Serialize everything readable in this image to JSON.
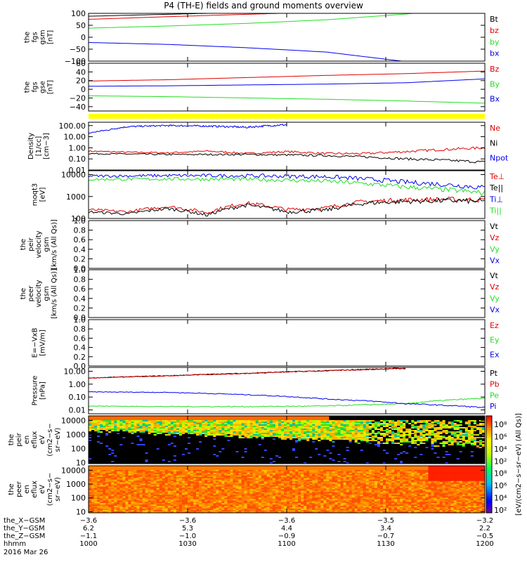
{
  "title": "P4 (TH-E) fields and ground moments overview",
  "colors": {
    "black": "#000000",
    "red": "#e00000",
    "green": "#22dd22",
    "blue": "#0000ee",
    "yellow": "#ffff00"
  },
  "chart_data": [
    {
      "id": "fgs_gsm",
      "type": "line",
      "ylabel": [
        "the",
        "fgs",
        "gsm",
        "[nT]"
      ],
      "ylim": [
        -100,
        100
      ],
      "yticks": [
        "100",
        "50",
        "0",
        "−50",
        "−100"
      ],
      "ytick_values": [
        100,
        50,
        0,
        -50,
        -100
      ],
      "series": [
        {
          "name": "Bt",
          "color": "black",
          "x": [
            0,
            0.2,
            0.4,
            0.6,
            0.8,
            1.0
          ],
          "y": [
            88,
            96,
            104,
            112,
            120,
            128
          ]
        },
        {
          "name": "bz",
          "color": "red",
          "x": [
            0,
            0.2,
            0.4,
            0.6,
            0.8,
            1.0
          ],
          "y": [
            75,
            86,
            96,
            106,
            114,
            120
          ]
        },
        {
          "name": "by",
          "color": "green",
          "x": [
            0,
            0.2,
            0.4,
            0.6,
            0.8,
            0.85
          ],
          "y": [
            38,
            47,
            58,
            73,
            97,
            105
          ]
        },
        {
          "name": "bx",
          "color": "blue",
          "x": [
            0,
            0.2,
            0.4,
            0.6,
            0.75,
            0.8
          ],
          "y": [
            -22,
            -30,
            -44,
            -62,
            -92,
            -102
          ]
        }
      ]
    },
    {
      "id": "fgs_gse",
      "type": "line",
      "ylabel": [
        "the",
        "fgs",
        "gse",
        "[nT]"
      ],
      "ylim": [
        -50,
        60
      ],
      "yticks": [
        "60",
        "40",
        "20",
        "0",
        "−20",
        "−40"
      ],
      "ytick_values": [
        60,
        40,
        20,
        0,
        -20,
        -40
      ],
      "series": [
        {
          "name": "Bz",
          "color": "red",
          "x": [
            0,
            0.2,
            0.4,
            0.6,
            0.8,
            1.0
          ],
          "y": [
            19,
            22,
            27,
            32,
            36,
            42
          ]
        },
        {
          "name": "By",
          "color": "green",
          "x": [
            0,
            0.2,
            0.4,
            0.6,
            0.8,
            1.0
          ],
          "y": [
            -15,
            -17,
            -20,
            -23,
            -27,
            -32
          ]
        },
        {
          "name": "Bx",
          "color": "blue",
          "x": [
            0,
            0.2,
            0.4,
            0.6,
            0.8,
            1.0
          ],
          "y": [
            7,
            8,
            10,
            12,
            15,
            24
          ]
        }
      ]
    },
    {
      "id": "density",
      "type": "line",
      "log": true,
      "ylabel": [
        "Density",
        "[1/cc]",
        "[cm−3]"
      ],
      "ylim": [
        0.01,
        200
      ],
      "yticks": [
        "100.00",
        "10.00",
        "1.00",
        "0.10",
        "0.01"
      ],
      "ytick_values": [
        100,
        10,
        1,
        0.1,
        0.01
      ],
      "series": [
        {
          "name": "Ne",
          "color": "red",
          "x": [
            0,
            0.1,
            0.2,
            0.3,
            0.4,
            0.5,
            0.6,
            0.7,
            0.8,
            0.9,
            1.0
          ],
          "y": [
            0.5,
            0.4,
            0.35,
            0.5,
            0.3,
            0.45,
            0.3,
            0.3,
            0.45,
            0.7,
            1.0
          ]
        },
        {
          "name": "Ni",
          "color": "black",
          "x": [
            0,
            0.2,
            0.4,
            0.6,
            0.8,
            1.0
          ],
          "y": [
            0.3,
            0.25,
            0.25,
            0.2,
            0.1,
            0.05
          ]
        },
        {
          "name": "Npot",
          "color": "blue",
          "x": [
            0,
            0.05,
            0.1,
            0.2,
            0.3,
            0.4,
            0.5
          ],
          "y": [
            20,
            40,
            80,
            100,
            90,
            70,
            120
          ]
        }
      ]
    },
    {
      "id": "temperature",
      "type": "line",
      "log": true,
      "ylabel": [
        "moqt3",
        "[eV]"
      ],
      "ylim": [
        100,
        15000
      ],
      "yticks": [
        "10000",
        "1000",
        "100"
      ],
      "ytick_values": [
        10000,
        1000,
        100
      ],
      "series": [
        {
          "name": "Te⊥",
          "color": "red",
          "x": [
            0,
            0.1,
            0.2,
            0.3,
            0.4,
            0.5,
            0.6,
            0.7,
            0.8,
            0.9,
            1.0
          ],
          "y": [
            250,
            200,
            350,
            180,
            500,
            250,
            300,
            600,
            700,
            750,
            700
          ]
        },
        {
          "name": "Te||",
          "color": "black",
          "x": [
            0,
            0.1,
            0.2,
            0.3,
            0.4,
            0.5,
            0.6,
            0.7,
            0.8,
            0.9,
            1.0
          ],
          "y": [
            200,
            160,
            280,
            140,
            400,
            200,
            240,
            500,
            600,
            650,
            600
          ]
        },
        {
          "name": "Ti⊥",
          "color": "blue",
          "x": [
            0,
            0.2,
            0.4,
            0.6,
            0.8,
            1.0
          ],
          "y": [
            8500,
            9000,
            8800,
            8000,
            4500,
            2500
          ]
        },
        {
          "name": "Ti||",
          "color": "green",
          "x": [
            0,
            0.2,
            0.4,
            0.6,
            0.8,
            1.0
          ],
          "y": [
            6000,
            6300,
            6100,
            5000,
            2700,
            1400
          ]
        }
      ]
    },
    {
      "id": "peir_velocity",
      "type": "line",
      "ylabel": [
        "the",
        "peir",
        "velocity",
        "gsm",
        "[km/s (All Qs)]"
      ],
      "ylim": [
        0,
        1
      ],
      "yticks": [
        "1.0",
        "0.8",
        "0.6",
        "0.4",
        "0.2",
        "0.0"
      ],
      "ytick_values": [
        1,
        0.8,
        0.6,
        0.4,
        0.2,
        0
      ],
      "series": [
        {
          "name": "Vt",
          "color": "black"
        },
        {
          "name": "Vz",
          "color": "red"
        },
        {
          "name": "Vy",
          "color": "green"
        },
        {
          "name": "Vx",
          "color": "blue"
        }
      ]
    },
    {
      "id": "peer_velocity",
      "type": "line",
      "ylabel": [
        "the",
        "peer",
        "velocity",
        "gsm",
        "[km/s (All Qs)]"
      ],
      "ylim": [
        0,
        1
      ],
      "yticks": [
        "1.0",
        "0.8",
        "0.6",
        "0.4",
        "0.2",
        "0.0"
      ],
      "ytick_values": [
        1,
        0.8,
        0.6,
        0.4,
        0.2,
        0
      ],
      "series": [
        {
          "name": "Vt",
          "color": "black"
        },
        {
          "name": "Vz",
          "color": "red"
        },
        {
          "name": "Vy",
          "color": "green"
        },
        {
          "name": "Vx",
          "color": "blue"
        }
      ]
    },
    {
      "id": "efield",
      "type": "line",
      "ylabel": [
        "E=−VxB",
        "[mV/m]"
      ],
      "ylim": [
        0,
        1
      ],
      "yticks": [
        "1.0",
        "0.8",
        "0.6",
        "0.4",
        "0.2",
        "0.0"
      ],
      "ytick_values": [
        1,
        0.8,
        0.6,
        0.4,
        0.2,
        0
      ],
      "series": [
        {
          "name": "Ez",
          "color": "red"
        },
        {
          "name": "Ey",
          "color": "green"
        },
        {
          "name": "Ex",
          "color": "blue"
        }
      ]
    },
    {
      "id": "pressure",
      "type": "line",
      "log": true,
      "ylabel": [
        "Pressure",
        "[nPa]"
      ],
      "ylim": [
        0.005,
        20
      ],
      "yticks": [
        "10.00",
        "1.00",
        "0.10",
        "0.01"
      ],
      "ytick_values": [
        10,
        1,
        0.1,
        0.01
      ],
      "series": [
        {
          "name": "Pt",
          "color": "black",
          "x": [
            0,
            0.2,
            0.4,
            0.6,
            0.8
          ],
          "y": [
            3,
            4.5,
            7,
            11,
            17
          ]
        },
        {
          "name": "Pb",
          "color": "red",
          "x": [
            0,
            0.2,
            0.4,
            0.6,
            0.8
          ],
          "y": [
            2.9,
            4.4,
            6.8,
            10.8,
            16.5
          ]
        },
        {
          "name": "Pe",
          "color": "green",
          "x": [
            0,
            0.2,
            0.4,
            0.6,
            0.8,
            1.0
          ],
          "y": [
            0.02,
            0.018,
            0.018,
            0.02,
            0.03,
            0.08
          ]
        },
        {
          "name": "Pi",
          "color": "blue",
          "x": [
            0,
            0.2,
            0.4,
            0.6,
            0.8,
            1.0
          ],
          "y": [
            0.25,
            0.23,
            0.15,
            0.07,
            0.03,
            0.015
          ]
        }
      ]
    },
    {
      "id": "peir_eflux",
      "type": "heatmap",
      "ylabel": [
        "the",
        "peir",
        "en",
        "eflux",
        "eV",
        "(cm2−s−",
        "sr−eV)"
      ],
      "yticks": [
        "10000",
        "1000",
        "100",
        "10"
      ],
      "ytick_values": [
        10000,
        1000,
        100,
        10
      ]
    },
    {
      "id": "peer_eflux",
      "type": "heatmap",
      "ylabel": [
        "the",
        "peer",
        "en",
        "eflux",
        "eV",
        "(cm2−s−",
        "sr−eV)"
      ],
      "yticks": [
        "10000",
        "1000",
        "100",
        "10"
      ],
      "ytick_values": [
        10000,
        1000,
        100,
        10
      ]
    }
  ],
  "colorbar": {
    "label": "[eV/(cm2−s−sr−eV) (All Qs)]",
    "ticks": [
      "10⁸",
      "10⁶",
      "10⁴",
      "10²",
      "10⁸",
      "10⁶",
      "10⁴",
      "10²"
    ]
  },
  "xaxis": {
    "rows": [
      {
        "label": "the_X−GSM",
        "values": [
          "−3.6",
          "−3.6",
          "−3.6",
          "−3.5",
          "−3.2"
        ]
      },
      {
        "label": "the_Y−GSM",
        "values": [
          "6.2",
          "5.3",
          "4.4",
          "3.4",
          "2.2"
        ]
      },
      {
        "label": "the_Z−GSM",
        "values": [
          "−1.1",
          "−1.0",
          "−0.9",
          "−0.7",
          "−0.5"
        ]
      },
      {
        "label": "hhmm",
        "values": [
          "1000",
          "1030",
          "1100",
          "1130",
          "1200"
        ]
      }
    ],
    "date": "2016 Mar 26"
  }
}
